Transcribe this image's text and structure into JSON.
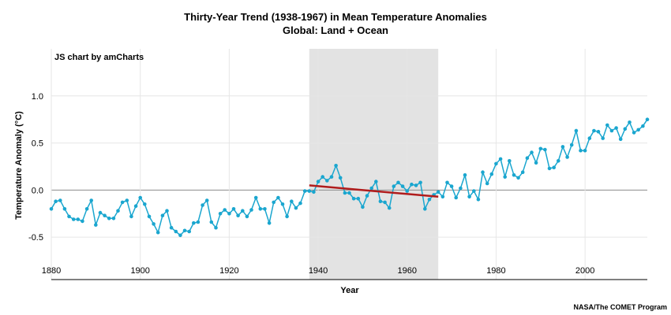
{
  "chart_data": {
    "type": "line",
    "title": "Thirty-Year Trend (1938-1967) in Mean Temperature Anomalies",
    "subtitle": "Global: Land + Ocean",
    "xlabel": "Year",
    "ylabel": "Temperature Anomaly (°C)",
    "xlim": [
      1880,
      2014
    ],
    "ylim": [
      -0.95,
      1.5
    ],
    "x_ticks": [
      "1880",
      "1900",
      "1920",
      "1940",
      "1960",
      "1980",
      "2000"
    ],
    "y_ticks": [
      "-0.5",
      "0.0",
      "0.5",
      "1.0"
    ],
    "grid": true,
    "highlight_period": [
      1938,
      1967
    ],
    "series": [
      {
        "color": "#1aa6cf",
        "x": [
          1880,
          1881,
          1882,
          1883,
          1884,
          1885,
          1886,
          1887,
          1888,
          1889,
          1890,
          1891,
          1892,
          1893,
          1894,
          1895,
          1896,
          1897,
          1898,
          1899,
          1900,
          1901,
          1902,
          1903,
          1904,
          1905,
          1906,
          1907,
          1908,
          1909,
          1910,
          1911,
          1912,
          1913,
          1914,
          1915,
          1916,
          1917,
          1918,
          1919,
          1920,
          1921,
          1922,
          1923,
          1924,
          1925,
          1926,
          1927,
          1928,
          1929,
          1930,
          1931,
          1932,
          1933,
          1934,
          1935,
          1936,
          1937,
          1938,
          1939,
          1940,
          1941,
          1942,
          1943,
          1944,
          1945,
          1946,
          1947,
          1948,
          1949,
          1950,
          1951,
          1952,
          1953,
          1954,
          1955,
          1956,
          1957,
          1958,
          1959,
          1960,
          1961,
          1962,
          1963,
          1964,
          1965,
          1966,
          1967,
          1968,
          1969,
          1970,
          1971,
          1972,
          1973,
          1974,
          1975,
          1976,
          1977,
          1978,
          1979,
          1980,
          1981,
          1982,
          1983,
          1984,
          1985,
          1986,
          1987,
          1988,
          1989,
          1990,
          1991,
          1992,
          1993,
          1994,
          1995,
          1996,
          1997,
          1998,
          1999,
          2000,
          2001,
          2002,
          2003,
          2004,
          2005,
          2006,
          2007,
          2008,
          2009,
          2010,
          2011,
          2012,
          2013,
          2014
        ],
        "values": [
          -0.2,
          -0.12,
          -0.11,
          -0.2,
          -0.28,
          -0.31,
          -0.31,
          -0.33,
          -0.2,
          -0.11,
          -0.37,
          -0.24,
          -0.27,
          -0.3,
          -0.3,
          -0.22,
          -0.13,
          -0.11,
          -0.28,
          -0.17,
          -0.08,
          -0.15,
          -0.28,
          -0.36,
          -0.45,
          -0.27,
          -0.22,
          -0.4,
          -0.44,
          -0.48,
          -0.43,
          -0.44,
          -0.35,
          -0.34,
          -0.16,
          -0.11,
          -0.34,
          -0.4,
          -0.25,
          -0.21,
          -0.25,
          -0.2,
          -0.27,
          -0.22,
          -0.28,
          -0.21,
          -0.08,
          -0.2,
          -0.2,
          -0.35,
          -0.13,
          -0.08,
          -0.15,
          -0.28,
          -0.12,
          -0.19,
          -0.14,
          -0.01,
          -0.01,
          -0.02,
          0.09,
          0.14,
          0.1,
          0.14,
          0.26,
          0.13,
          -0.03,
          -0.03,
          -0.09,
          -0.09,
          -0.18,
          -0.06,
          0.02,
          0.09,
          -0.12,
          -0.13,
          -0.19,
          0.04,
          0.08,
          0.04,
          -0.01,
          0.06,
          0.05,
          0.08,
          -0.2,
          -0.1,
          -0.05,
          -0.02,
          -0.07,
          0.08,
          0.04,
          -0.08,
          0.02,
          0.16,
          -0.07,
          -0.01,
          -0.1,
          0.19,
          0.07,
          0.17,
          0.28,
          0.33,
          0.14,
          0.31,
          0.16,
          0.13,
          0.19,
          0.34,
          0.4,
          0.29,
          0.44,
          0.43,
          0.23,
          0.24,
          0.31,
          0.46,
          0.35,
          0.48,
          0.63,
          0.42,
          0.42,
          0.55,
          0.63,
          0.62,
          0.55,
          0.69,
          0.63,
          0.66,
          0.54,
          0.65,
          0.72,
          0.61,
          0.64,
          0.68,
          0.75
        ]
      }
    ],
    "trend_line": {
      "color": "#b01c1c",
      "x": [
        1938,
        1967
      ],
      "y": [
        0.05,
        -0.07
      ]
    }
  },
  "watermark": "JS chart by amCharts",
  "footer": "NASA/The COMET Program"
}
